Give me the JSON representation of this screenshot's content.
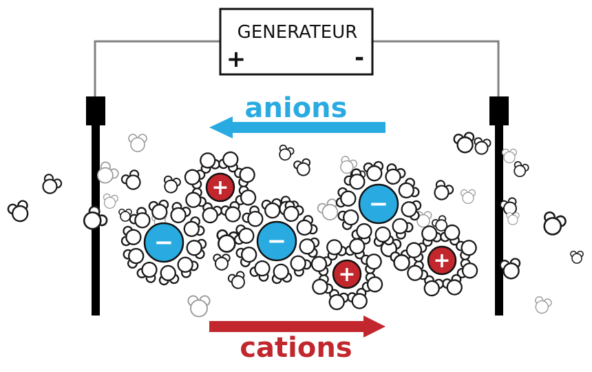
{
  "generator": {
    "title": "GENERATEUR",
    "plus_sign": "+",
    "minus_sign": "-"
  },
  "labels": {
    "anions": "anions",
    "cations": "cations"
  },
  "ion_signs": {
    "anion": "−",
    "cation": "+"
  },
  "colors": {
    "anion": "#29abe2",
    "cation": "#c1272d",
    "electrode": "#000000",
    "wire": "#808080",
    "water": "#ffffff",
    "water_stroke": "#1a1a1a",
    "water_faint": "#9a9a9a"
  }
}
